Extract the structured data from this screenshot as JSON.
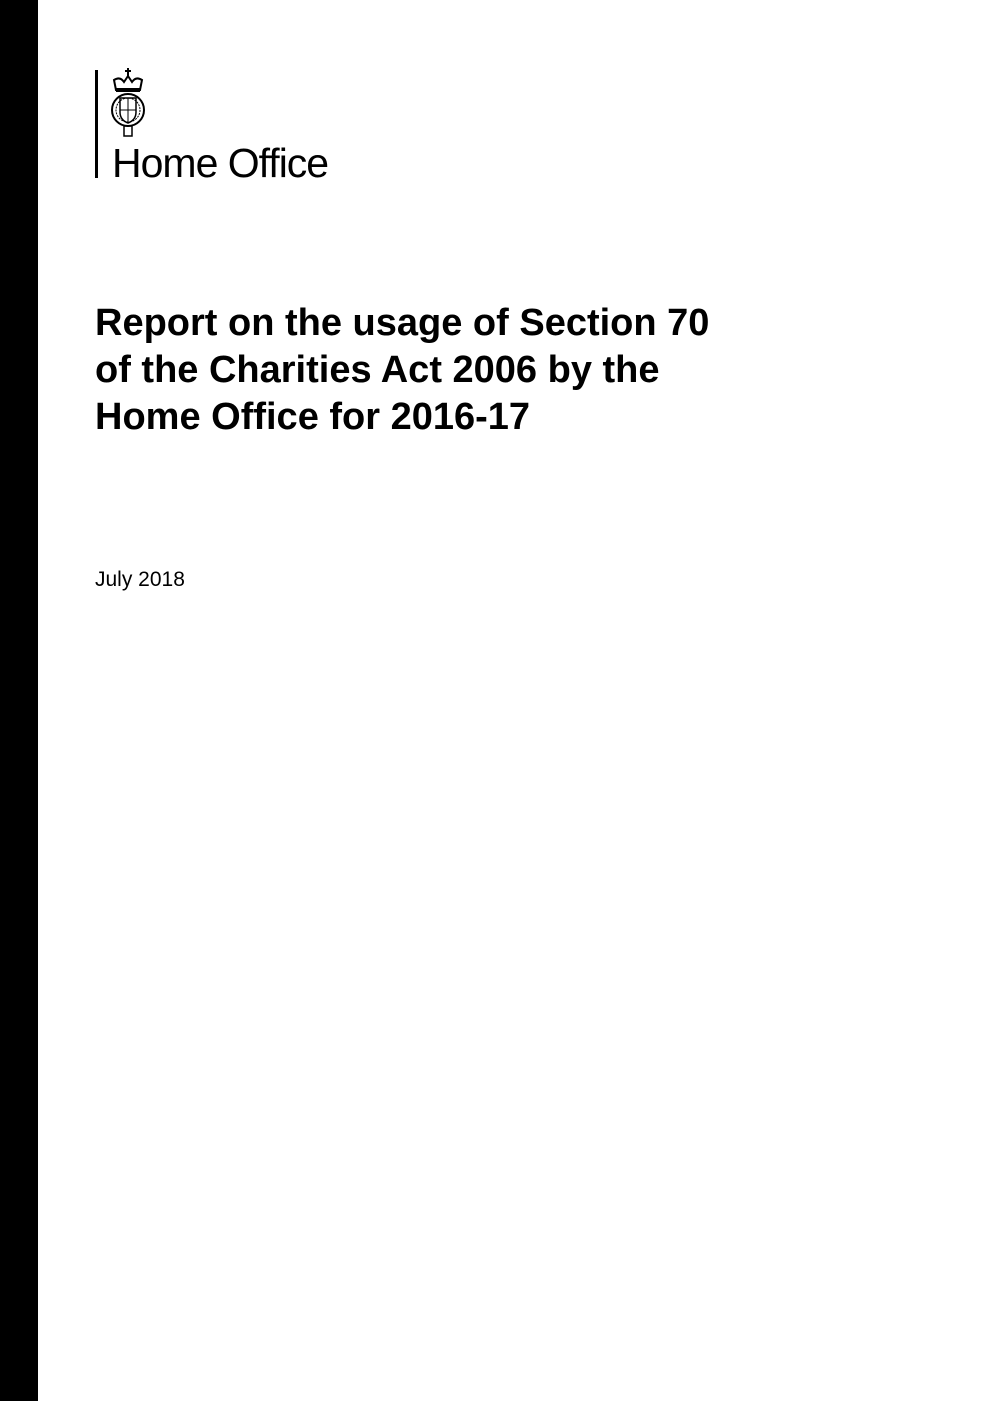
{
  "logo": {
    "text": "Home Office"
  },
  "title_lines": [
    "Report on the usage of Section 70",
    "of the Charities Act 2006 by the",
    "Home Office for 2016-17"
  ],
  "date": "July 2018",
  "colors": {
    "edge_bar": "#000000",
    "text": "#000000"
  }
}
